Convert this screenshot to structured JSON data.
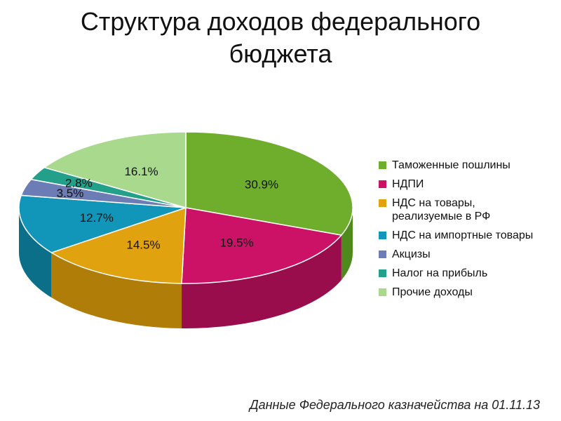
{
  "title_line1": "Структура доходов федерального",
  "title_line2": "бюджета",
  "source_note": "Данные Федерального казначейства на  01.11.13",
  "chart_data": {
    "type": "pie",
    "title": "Структура доходов федерального бюджета",
    "start_angle_deg": 0,
    "direction": "clockwise",
    "slices": [
      {
        "label": "Таможенные пошлины",
        "value": 30.9,
        "display": "30.9%",
        "color": "#6fad2d",
        "side": "#4f8a1c"
      },
      {
        "label": "НДПИ",
        "value": 19.5,
        "display": "19.5%",
        "color": "#cc1267",
        "side": "#9a0d4d"
      },
      {
        "label": "НДС на товары,\nреализуемые в РФ",
        "value": 14.5,
        "display": "14.5%",
        "color": "#e0a20e",
        "side": "#b07d08"
      },
      {
        "label": "НДС на импортные товары",
        "value": 12.7,
        "display": "12.7%",
        "color": "#1196b9",
        "side": "#0b6f8a"
      },
      {
        "label": "Акцизы",
        "value": 3.5,
        "display": "3.5%",
        "color": "#6c7cb5",
        "side": "#4f5d8e"
      },
      {
        "label": "Налог на прибыль",
        "value": 2.8,
        "display": "2.8%",
        "color": "#23a08a",
        "side": "#187a69"
      },
      {
        "label": "Прочие доходы",
        "value": 16.1,
        "display": "16.1%",
        "color": "#a8d98c",
        "side": "#80b566"
      }
    ],
    "legend_position": "right"
  }
}
